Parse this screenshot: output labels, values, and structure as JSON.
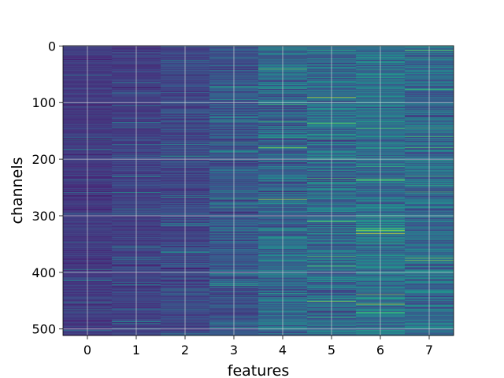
{
  "chart_data": {
    "type": "heatmap",
    "title": "",
    "xlabel": "features",
    "ylabel": "channels",
    "x_categories": [
      "0",
      "1",
      "2",
      "3",
      "4",
      "5",
      "6",
      "7"
    ],
    "x_ticks": [
      0,
      1,
      2,
      3,
      4,
      5,
      6,
      7
    ],
    "y_ticks": [
      0,
      100,
      200,
      300,
      400,
      500
    ],
    "y_range": [
      0,
      511
    ],
    "y_inverted": true,
    "n_channels": 512,
    "n_features": 8,
    "grid": true,
    "colormap": "viridis",
    "column_mean_intensity": [
      0.22,
      0.24,
      0.27,
      0.33,
      0.4,
      0.42,
      0.45,
      0.42
    ],
    "column_contrast": [
      0.06,
      0.07,
      0.1,
      0.13,
      0.2,
      0.2,
      0.2,
      0.18
    ],
    "colors": {
      "grid": "#d9d9d9",
      "axis": "#000000"
    }
  }
}
